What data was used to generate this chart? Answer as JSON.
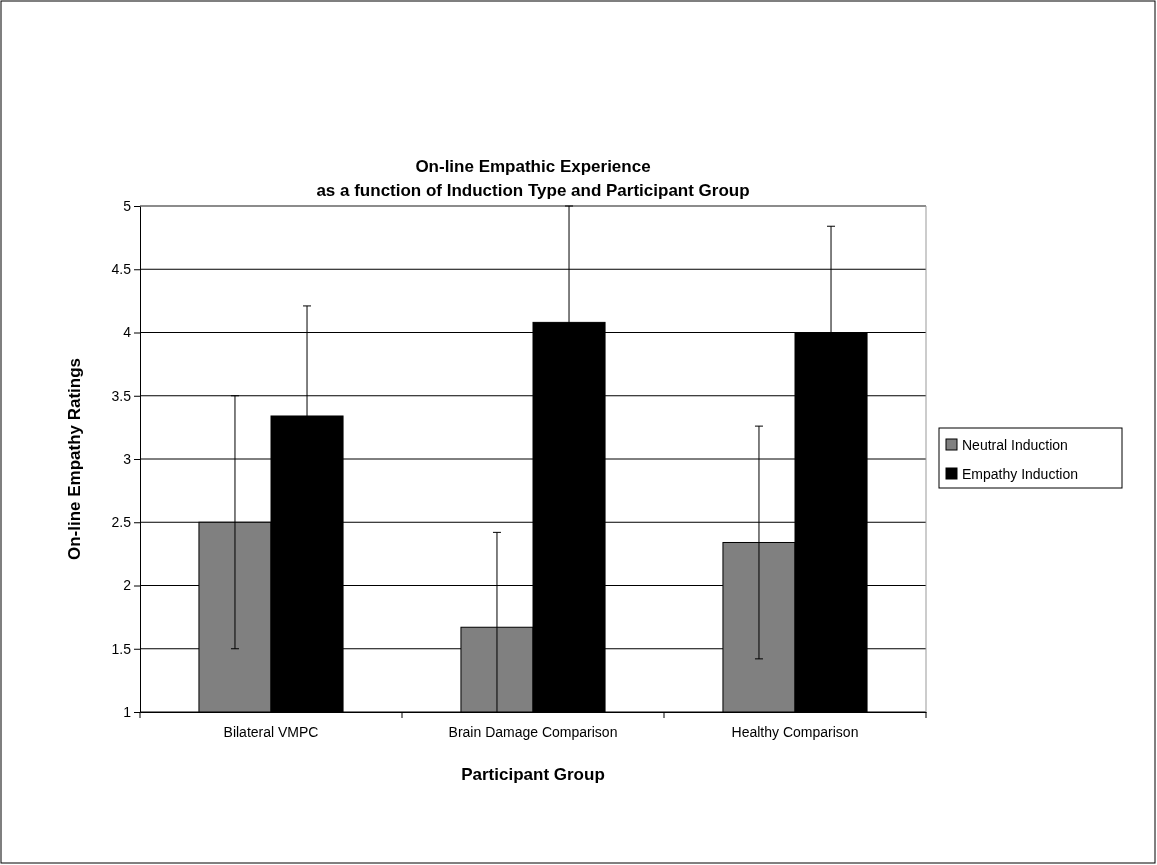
{
  "chart_data": {
    "type": "bar",
    "title": "On-line Empathic Experience\nas a function of Induction Type and Participant Group",
    "xlabel": "Participant Group",
    "ylabel": "On-line Empathy Ratings",
    "categories": [
      "Bilateral VMPC",
      "Brain Damage Comparison",
      "Healthy Comparison"
    ],
    "series": [
      {
        "name": "Neutral Induction",
        "color": "#808080",
        "values": [
          2.5,
          1.67,
          2.34
        ],
        "errors": [
          1.0,
          [
            1,
            2.42
          ],
          0.92
        ]
      },
      {
        "name": "Empathy Induction",
        "color": "#000000",
        "values": [
          3.34,
          4.08,
          4.0
        ],
        "errors": [
          0.87,
          0.92,
          0.84
        ]
      }
    ],
    "ylim": [
      1,
      5
    ],
    "yticks": [
      1,
      1.5,
      2,
      2.5,
      3,
      3.5,
      4,
      4.5,
      5
    ],
    "grid": "y",
    "legend": "right"
  }
}
